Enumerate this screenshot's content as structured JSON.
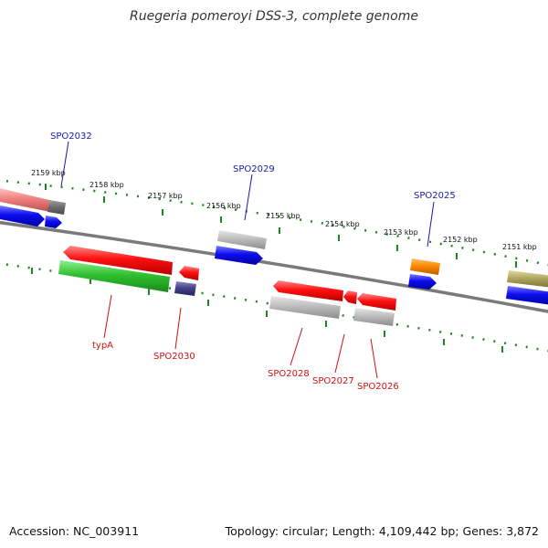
{
  "title": "Ruegeria pomeroyi DSS-3, complete genome",
  "footer": {
    "accession": "Accession: NC_003911",
    "summary": "Topology: circular; Length: 4,109,442 bp; Genes: 3,872"
  },
  "scale_labels": [
    "2159 kbp",
    "2158 kbp",
    "2157 kbp",
    "2156 kbp",
    "2155 kbp",
    "2154 kbp",
    "2153 kbp",
    "2152 kbp",
    "2151 kbp"
  ],
  "genes_forward": [
    "SPO2032",
    "SPO2029",
    "SPO2025"
  ],
  "genes_reverse": [
    "typA",
    "SPO2030",
    "SPO2028",
    "SPO2027",
    "SPO2026"
  ],
  "colors": {
    "forward_label": "#1a1aaa",
    "reverse_label": "#cc1111",
    "ruler": "#1a8a1a",
    "backbone": "#7a7a7a"
  }
}
